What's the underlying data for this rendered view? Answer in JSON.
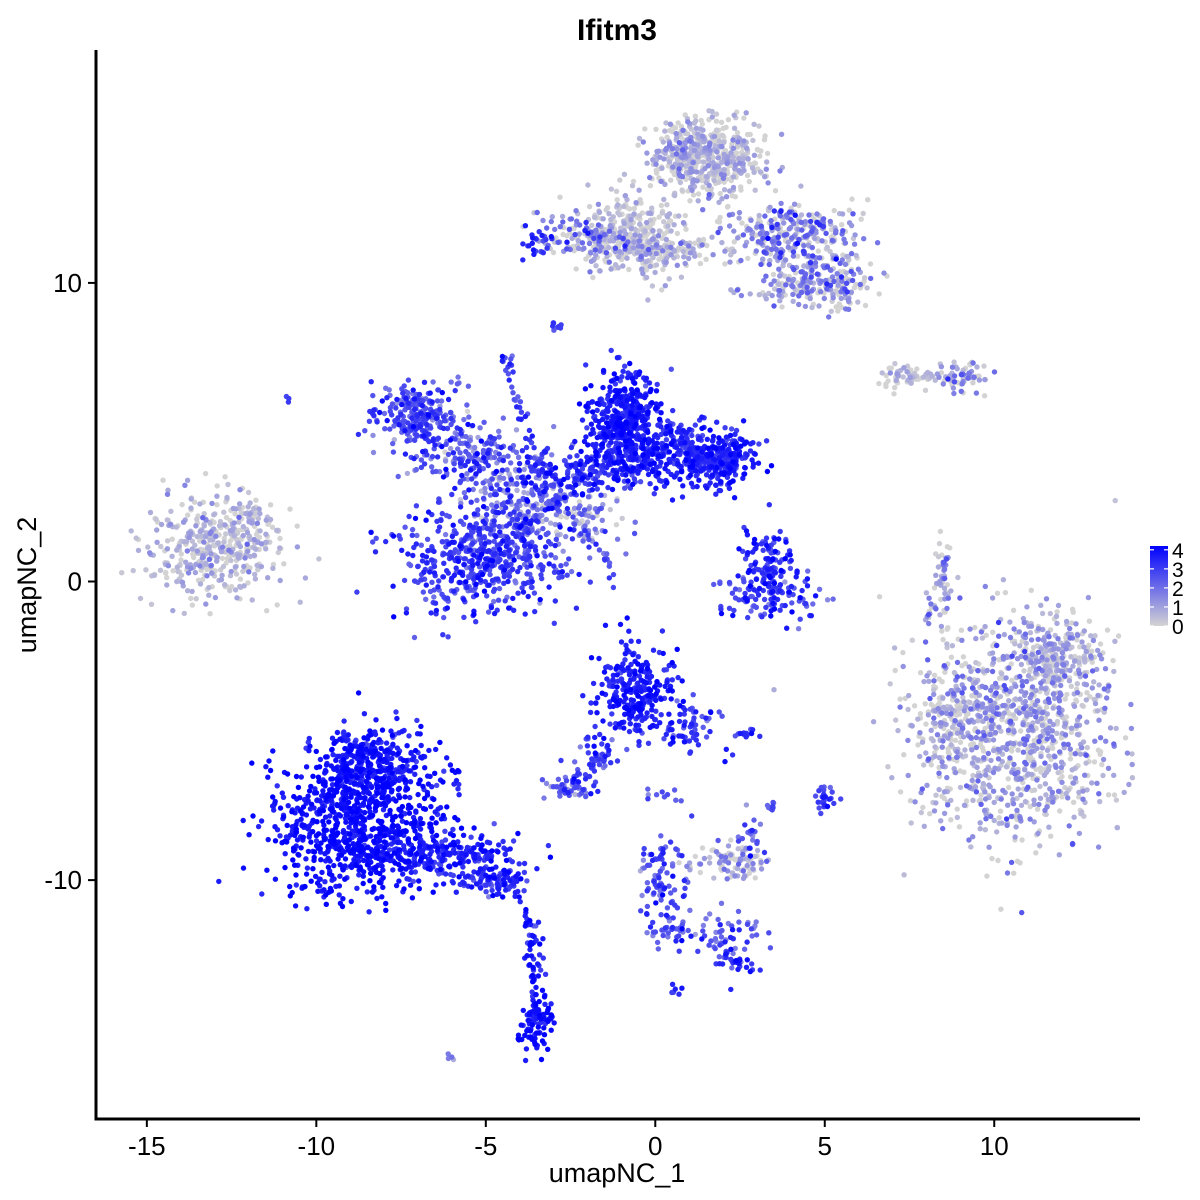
{
  "chart_data": {
    "type": "scatter",
    "title": "Ifitm3",
    "xlabel": "umapNC_1",
    "ylabel": "umapNC_2",
    "xlim": [
      -16.5,
      14.3
    ],
    "ylim": [
      -18,
      17.8
    ],
    "xticks": [
      -15,
      -10,
      -5,
      0,
      5,
      10
    ],
    "xtick_labels": [
      "-15",
      "-10",
      "-5",
      "0",
      "5",
      "10"
    ],
    "yticks": [
      -10,
      0,
      10
    ],
    "ytick_labels": [
      "-10",
      "0",
      "10"
    ],
    "grid": false,
    "color_scale": {
      "low_color": "#d3d3d3",
      "high_color": "#0000ff",
      "min": 0,
      "max": 4.2,
      "tick_values": [
        0,
        1,
        2,
        3,
        4
      ],
      "tick_labels": [
        "0",
        "1",
        "2",
        "3",
        "4"
      ],
      "position": "right"
    },
    "clusters": [
      {
        "center": [
          -13.2,
          1.1
        ],
        "spread": [
          1.0,
          0.9
        ],
        "n": 360,
        "expr_mean": 0.6,
        "expr_sd": 0.5
      },
      {
        "center": [
          -12.0,
          1.7
        ],
        "spread": [
          0.7,
          0.6
        ],
        "n": 90,
        "expr_mean": 0.5,
        "expr_sd": 0.4
      },
      {
        "center": [
          -10.8,
          6.1
        ],
        "spread": [
          0.05,
          0.05
        ],
        "n": 3,
        "expr_mean": 3.0,
        "expr_sd": 0.2
      },
      {
        "center": [
          -7.0,
          5.5
        ],
        "spread": [
          0.6,
          0.55
        ],
        "n": 230,
        "expr_mean": 2.7,
        "expr_sd": 0.7
      },
      {
        "center": [
          -5.5,
          4.3
        ],
        "spread": [
          0.9,
          0.5
        ],
        "n": 160,
        "expr_mean": 2.4,
        "expr_sd": 0.9
      },
      {
        "center": [
          -5.2,
          0.8
        ],
        "spread": [
          1.2,
          1.0
        ],
        "n": 520,
        "expr_mean": 3.0,
        "expr_sd": 0.6
      },
      {
        "center": [
          -3.9,
          2.4
        ],
        "spread": [
          0.8,
          1.0
        ],
        "n": 220,
        "expr_mean": 2.0,
        "expr_sd": 1.0
      },
      {
        "center": [
          -0.9,
          5.3
        ],
        "spread": [
          0.55,
          0.85
        ],
        "n": 460,
        "expr_mean": 3.6,
        "expr_sd": 0.4
      },
      {
        "center": [
          0.6,
          4.3
        ],
        "spread": [
          1.0,
          0.5
        ],
        "n": 300,
        "expr_mean": 3.4,
        "expr_sd": 0.5
      },
      {
        "center": [
          2.0,
          4.0
        ],
        "spread": [
          0.5,
          0.45
        ],
        "n": 200,
        "expr_mean": 3.5,
        "expr_sd": 0.4
      },
      {
        "center": [
          -2.3,
          3.6
        ],
        "spread": [
          0.9,
          0.4
        ],
        "n": 160,
        "expr_mean": 3.2,
        "expr_sd": 0.6
      },
      {
        "center": [
          -2.0,
          2.2
        ],
        "spread": [
          0.5,
          0.5
        ],
        "n": 60,
        "expr_mean": 1.5,
        "expr_sd": 1.0
      },
      {
        "center": [
          3.2,
          0.6
        ],
        "spread": [
          0.45,
          0.55
        ],
        "n": 110,
        "expr_mean": 3.2,
        "expr_sd": 0.6
      },
      {
        "center": [
          3.4,
          -0.5
        ],
        "spread": [
          0.75,
          0.35
        ],
        "n": 110,
        "expr_mean": 2.9,
        "expr_sd": 0.7
      },
      {
        "center": [
          -0.5,
          11.6
        ],
        "spread": [
          0.8,
          0.8
        ],
        "n": 300,
        "expr_mean": 0.4,
        "expr_sd": 0.5
      },
      {
        "center": [
          1.5,
          14.2
        ],
        "spread": [
          0.8,
          0.6
        ],
        "n": 550,
        "expr_mean": 0.6,
        "expr_sd": 0.6
      },
      {
        "center": [
          4.0,
          11.6
        ],
        "spread": [
          0.9,
          0.6
        ],
        "n": 300,
        "expr_mean": 1.5,
        "expr_sd": 1.0
      },
      {
        "center": [
          5.0,
          10.0
        ],
        "spread": [
          0.7,
          0.45
        ],
        "n": 200,
        "expr_mean": 1.2,
        "expr_sd": 0.9
      },
      {
        "center": [
          -2.0,
          11.6
        ],
        "spread": [
          0.8,
          0.4
        ],
        "n": 120,
        "expr_mean": 1.6,
        "expr_sd": 0.9
      },
      {
        "center": [
          -3.5,
          11.3
        ],
        "spread": [
          0.3,
          0.25
        ],
        "n": 25,
        "expr_mean": 3.2,
        "expr_sd": 0.5
      },
      {
        "center": [
          0.3,
          11.1
        ],
        "spread": [
          1.2,
          0.2
        ],
        "n": 90,
        "expr_mean": 0.6,
        "expr_sd": 0.6
      },
      {
        "center": [
          -2.9,
          8.5
        ],
        "spread": [
          0.1,
          0.1
        ],
        "n": 8,
        "expr_mean": 3.0,
        "expr_sd": 0.5
      },
      {
        "center": [
          7.4,
          6.8
        ],
        "spread": [
          0.5,
          0.2
        ],
        "n": 40,
        "expr_mean": 0.4,
        "expr_sd": 0.4
      },
      {
        "center": [
          9.1,
          6.9
        ],
        "spread": [
          0.4,
          0.3
        ],
        "n": 60,
        "expr_mean": 1.3,
        "expr_sd": 0.8
      },
      {
        "center": [
          8.5,
          -0.1
        ],
        "spread": [
          0.2,
          0.9
        ],
        "n": 40,
        "expr_mean": 1.0,
        "expr_sd": 0.8
      },
      {
        "center": [
          10.7,
          -5.0
        ],
        "spread": [
          1.5,
          1.8
        ],
        "n": 1000,
        "expr_mean": 1.0,
        "expr_sd": 0.7
      },
      {
        "center": [
          11.8,
          -2.6
        ],
        "spread": [
          0.8,
          0.7
        ],
        "n": 220,
        "expr_mean": 0.8,
        "expr_sd": 0.6
      },
      {
        "center": [
          8.8,
          -4.8
        ],
        "spread": [
          0.45,
          1.1
        ],
        "n": 140,
        "expr_mean": 0.7,
        "expr_sd": 0.7
      },
      {
        "center": [
          -0.6,
          -3.7
        ],
        "spread": [
          0.55,
          0.75
        ],
        "n": 260,
        "expr_mean": 3.6,
        "expr_sd": 0.4
      },
      {
        "center": [
          0.9,
          -4.9
        ],
        "spread": [
          0.5,
          0.5
        ],
        "n": 70,
        "expr_mean": 3.0,
        "expr_sd": 0.6
      },
      {
        "center": [
          -1.8,
          -5.8
        ],
        "spread": [
          0.35,
          0.5
        ],
        "n": 40,
        "expr_mean": 2.8,
        "expr_sd": 0.6
      },
      {
        "center": [
          -2.6,
          -6.9
        ],
        "spread": [
          0.35,
          0.2
        ],
        "n": 45,
        "expr_mean": 2.3,
        "expr_sd": 0.8
      },
      {
        "center": [
          -8.8,
          -8.0
        ],
        "spread": [
          1.2,
          1.2
        ],
        "n": 900,
        "expr_mean": 3.9,
        "expr_sd": 0.3
      },
      {
        "center": [
          -8.3,
          -6.0
        ],
        "spread": [
          0.8,
          0.6
        ],
        "n": 250,
        "expr_mean": 3.6,
        "expr_sd": 0.4
      },
      {
        "center": [
          -6.2,
          -9.2
        ],
        "spread": [
          1.1,
          0.4
        ],
        "n": 220,
        "expr_mean": 3.5,
        "expr_sd": 0.5
      },
      {
        "center": [
          -4.8,
          -10.0
        ],
        "spread": [
          0.5,
          0.25
        ],
        "n": 90,
        "expr_mean": 3.3,
        "expr_sd": 0.6
      },
      {
        "center": [
          -3.6,
          -12.5
        ],
        "spread": [
          0.15,
          0.9
        ],
        "n": 30,
        "expr_mean": 3.4,
        "expr_sd": 0.5
      },
      {
        "center": [
          -3.5,
          -14.8
        ],
        "spread": [
          0.25,
          0.5
        ],
        "n": 90,
        "expr_mean": 3.9,
        "expr_sd": 0.3
      },
      {
        "center": [
          0.4,
          -10.0
        ],
        "spread": [
          0.35,
          0.9
        ],
        "n": 60,
        "expr_mean": 2.7,
        "expr_sd": 0.7
      },
      {
        "center": [
          1.7,
          -11.8
        ],
        "spread": [
          0.9,
          0.35
        ],
        "n": 70,
        "expr_mean": 2.6,
        "expr_sd": 0.8
      },
      {
        "center": [
          2.4,
          -12.7
        ],
        "spread": [
          0.3,
          0.2
        ],
        "n": 35,
        "expr_mean": 3.0,
        "expr_sd": 0.6
      },
      {
        "center": [
          2.3,
          -9.4
        ],
        "spread": [
          0.55,
          0.3
        ],
        "n": 90,
        "expr_mean": 1.0,
        "expr_sd": 0.9
      },
      {
        "center": [
          2.8,
          -8.6
        ],
        "spread": [
          0.2,
          0.4
        ],
        "n": 25,
        "expr_mean": 2.0,
        "expr_sd": 0.9
      },
      {
        "center": [
          5.0,
          -7.3
        ],
        "spread": [
          0.15,
          0.25
        ],
        "n": 25,
        "expr_mean": 2.9,
        "expr_sd": 0.6
      },
      {
        "center": [
          2.7,
          -5.1
        ],
        "spread": [
          0.3,
          0.08
        ],
        "n": 12,
        "expr_mean": 3.0,
        "expr_sd": 0.5
      },
      {
        "center": [
          3.4,
          -7.5
        ],
        "spread": [
          0.12,
          0.15
        ],
        "n": 8,
        "expr_mean": 2.6,
        "expr_sd": 0.6
      },
      {
        "center": [
          0.6,
          -13.7
        ],
        "spread": [
          0.1,
          0.1
        ],
        "n": 6,
        "expr_mean": 3.5,
        "expr_sd": 0.3
      },
      {
        "center": [
          -6.1,
          -16.0
        ],
        "spread": [
          0.1,
          0.08
        ],
        "n": 4,
        "expr_mean": 2.0,
        "expr_sd": 0.5
      },
      {
        "center": [
          0.2,
          -7.1
        ],
        "spread": [
          0.3,
          0.12
        ],
        "n": 10,
        "expr_mean": 3.0,
        "expr_sd": 0.5
      }
    ],
    "strands": [
      {
        "from": [
          -4.4,
          7.6
        ],
        "to": [
          -3.0,
          2.0
        ],
        "n": 50,
        "expr_mean": 2.8,
        "expr_sd": 0.7
      },
      {
        "from": [
          -5.8,
          6.8
        ],
        "to": [
          -5.2,
          3.5
        ],
        "n": 14,
        "expr_mean": 2.0,
        "expr_sd": 0.9
      },
      {
        "from": [
          -2.7,
          2.3
        ],
        "to": [
          -1.3,
          0.6
        ],
        "n": 30,
        "expr_mean": 2.4,
        "expr_sd": 0.9
      },
      {
        "from": [
          -4.5,
          1.5
        ],
        "to": [
          -2.5,
          3.0
        ],
        "n": 40,
        "expr_mean": 2.4,
        "expr_sd": 0.9
      },
      {
        "from": [
          8.7,
          1.2
        ],
        "to": [
          8.0,
          -1.4
        ],
        "n": 26,
        "expr_mean": 1.3,
        "expr_sd": 0.9
      },
      {
        "from": [
          0.0,
          -10.8
        ],
        "to": [
          0.3,
          -8.7
        ],
        "n": 18,
        "expr_mean": 2.8,
        "expr_sd": 0.6
      },
      {
        "from": [
          -0.4,
          -9.0
        ],
        "to": [
          -0.1,
          -12.0
        ],
        "n": 20,
        "expr_mean": 2.6,
        "expr_sd": 0.7
      },
      {
        "from": [
          -3.9,
          -10.4
        ],
        "to": [
          -3.5,
          -13.8
        ],
        "n": 24,
        "expr_mean": 3.5,
        "expr_sd": 0.5
      },
      {
        "from": [
          -2.0,
          11.6
        ],
        "to": [
          1.0,
          11.0
        ],
        "n": 40,
        "expr_mean": 0.8,
        "expr_sd": 0.8
      },
      {
        "from": [
          2.1,
          9.7
        ],
        "to": [
          4.4,
          9.6
        ],
        "n": 20,
        "expr_mean": 0.8,
        "expr_sd": 0.7
      },
      {
        "from": [
          -1.2,
          -5.4
        ],
        "to": [
          -2.5,
          -6.8
        ],
        "n": 20,
        "expr_mean": 3.0,
        "expr_sd": 0.6
      },
      {
        "from": [
          6.8,
          7.0
        ],
        "to": [
          9.5,
          6.8
        ],
        "n": 20,
        "expr_mean": 0.6,
        "expr_sd": 0.6
      }
    ]
  }
}
